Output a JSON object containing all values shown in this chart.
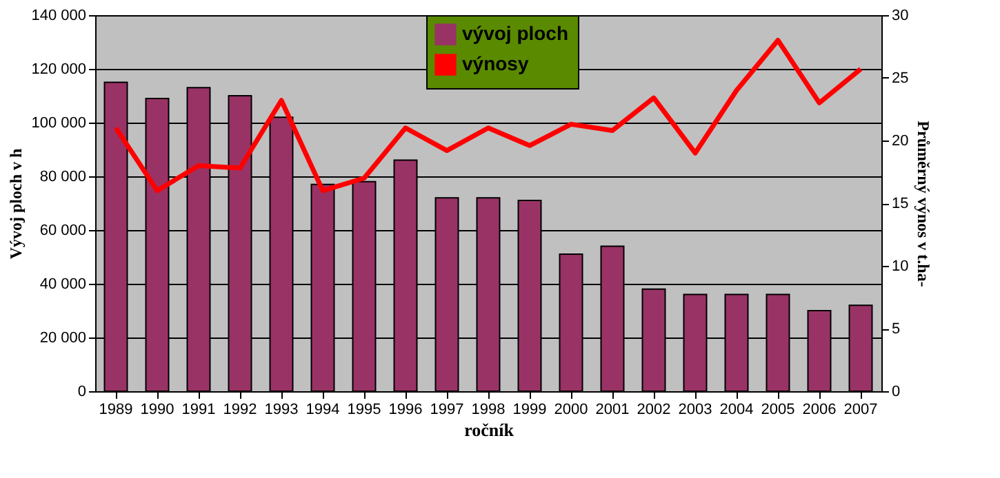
{
  "chart_data": {
    "type": "bar",
    "xlabel": "ročník",
    "ylabel": "Vývoj ploch v h",
    "y2label": "Průměrný výnos v t.ha-",
    "categories": [
      "1989",
      "1990",
      "1991",
      "1992",
      "1993",
      "1994",
      "1995",
      "1996",
      "1997",
      "1998",
      "1999",
      "2000",
      "2001",
      "2002",
      "2003",
      "2004",
      "2005",
      "2006",
      "2007"
    ],
    "series": [
      {
        "name": "vývoj ploch",
        "color": "#993366",
        "values": [
          115000,
          109000,
          113000,
          110000,
          102000,
          77000,
          78000,
          86000,
          72000,
          72000,
          71000,
          51000,
          54000,
          38000,
          36000,
          36000,
          36000,
          30000,
          32000
        ]
      },
      {
        "name": "výnosy",
        "type": "line",
        "axis": "y2",
        "color": "#ff0000",
        "values": [
          21,
          16,
          18,
          17.8,
          23.2,
          16,
          17,
          21,
          19.2,
          21,
          19.6,
          21.3,
          20.8,
          23.4,
          19,
          24,
          28,
          23,
          25.7
        ]
      }
    ],
    "ylim": [
      0,
      140000
    ],
    "yticks": [
      {
        "value": 0,
        "label": "0"
      },
      {
        "value": 20000,
        "label": "20 000"
      },
      {
        "value": 40000,
        "label": "40 000"
      },
      {
        "value": 60000,
        "label": "60 000"
      },
      {
        "value": 80000,
        "label": "80 000"
      },
      {
        "value": 100000,
        "label": "100 000"
      },
      {
        "value": 120000,
        "label": "120 000"
      },
      {
        "value": 140000,
        "label": "140 000"
      }
    ],
    "y2lim": [
      0,
      30
    ],
    "y2ticks": [
      0,
      5,
      10,
      15,
      20,
      25,
      30
    ],
    "grid": "y",
    "legend": "top",
    "line_style": "solid",
    "marker": "none"
  }
}
